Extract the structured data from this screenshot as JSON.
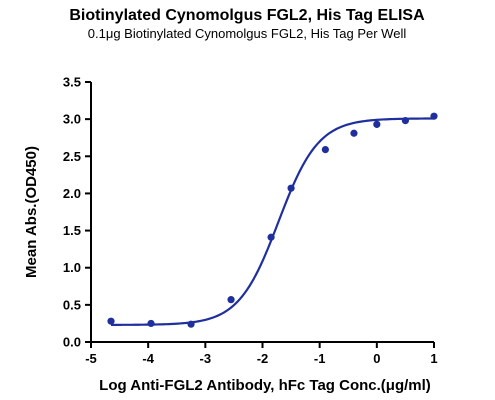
{
  "chart_data": {
    "type": "scatter",
    "title": "Biotinylated Cynomolgus FGL2, His Tag ELISA",
    "subtitle": "0.1μg Biotinylated Cynomolgus FGL2, His Tag Per Well",
    "xlabel": "Log Anti-FGL2 Antibody, hFc Tag Conc.(μg/ml)",
    "ylabel": "Mean Abs.(OD450)",
    "xlim": [
      -5,
      1
    ],
    "ylim": [
      0,
      3.5
    ],
    "x_ticks": [
      "-5",
      "-4",
      "-3",
      "-2",
      "-1",
      "0",
      "1"
    ],
    "y_ticks": [
      "0.0",
      "0.5",
      "1.0",
      "1.5",
      "2.0",
      "2.5",
      "3.0",
      "3.5"
    ],
    "grid": false,
    "series": [
      {
        "color": "#1f2f9e",
        "x": [
          -4.65,
          -3.95,
          -3.25,
          -2.55,
          -1.85,
          -1.5,
          -0.9,
          -0.4,
          0.0,
          0.5,
          1.0
        ],
        "y": [
          0.28,
          0.25,
          0.24,
          0.57,
          1.41,
          2.07,
          2.59,
          2.81,
          2.93,
          2.98,
          3.04
        ]
      }
    ],
    "fit_curve": {
      "model": "4PL",
      "bottom": 0.23,
      "top": 3.01,
      "logEC50": -1.72,
      "hill": 1.25
    }
  }
}
